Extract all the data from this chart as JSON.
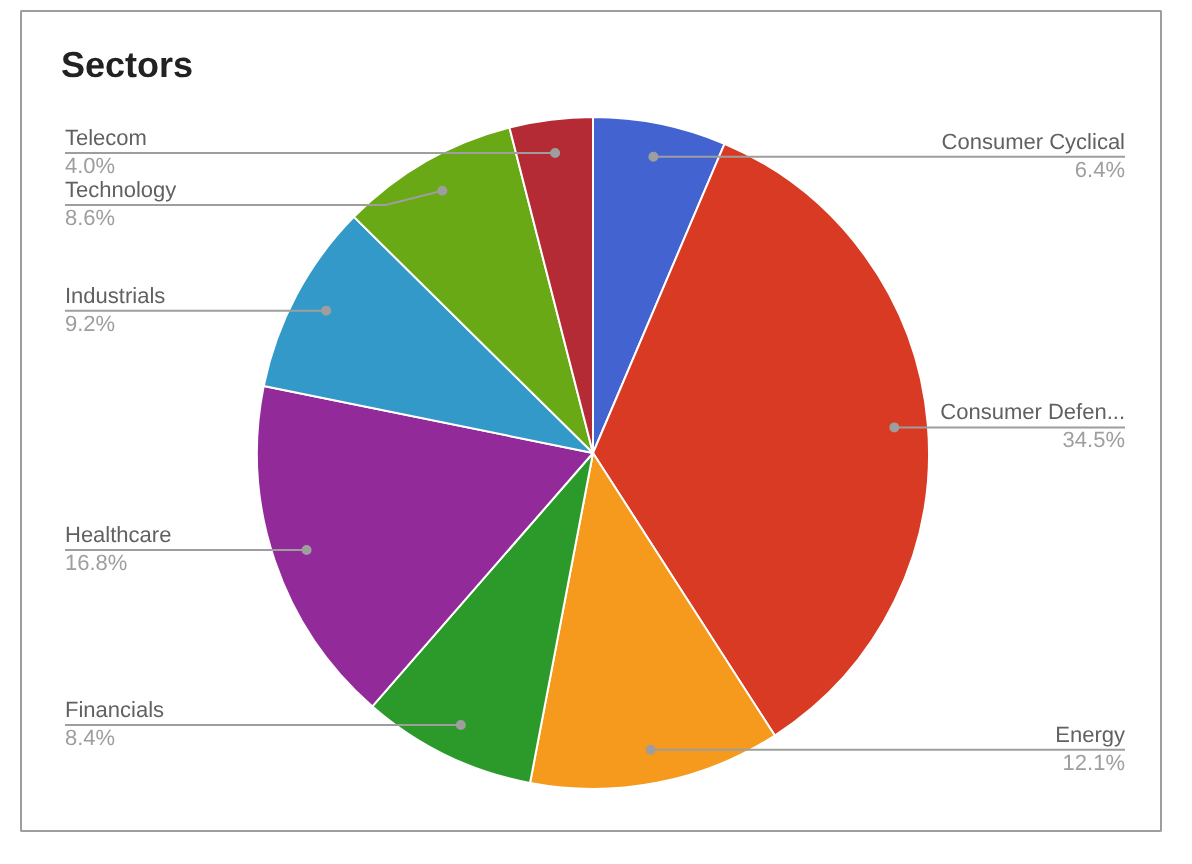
{
  "chart_data": {
    "type": "pie",
    "title": "Sectors",
    "categories": [
      "Consumer Cyclical",
      "Consumer Defen...",
      "Energy",
      "Financials",
      "Healthcare",
      "Industrials",
      "Technology",
      "Telecom"
    ],
    "values": [
      6.4,
      34.5,
      12.1,
      8.4,
      16.8,
      9.2,
      8.6,
      4.0
    ],
    "value_labels": [
      "6.4%",
      "34.5%",
      "12.1%",
      "8.4%",
      "16.8%",
      "9.2%",
      "8.6%",
      "4.0%"
    ],
    "colors": [
      "#4363d0",
      "#d83a23",
      "#f59a1d",
      "#2c9a2a",
      "#922a99",
      "#3299c9",
      "#6aa916",
      "#b42b36"
    ]
  }
}
